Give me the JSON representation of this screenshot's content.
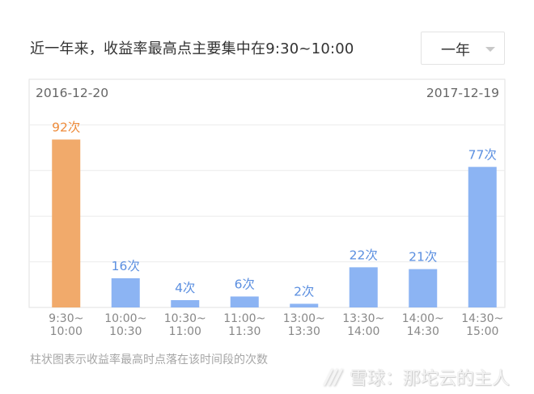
{
  "header": {
    "title": "近一年来，收益率最高点主要集中在9:30~10:00",
    "period_select": {
      "value": "一年"
    }
  },
  "chart_data": {
    "type": "bar",
    "start_date": "2016-12-20",
    "end_date": "2017-12-19",
    "categories": [
      [
        "9:30~",
        "10:00"
      ],
      [
        "10:00~",
        "10:30"
      ],
      [
        "10:30~",
        "11:00"
      ],
      [
        "11:00~",
        "11:30"
      ],
      [
        "13:00~",
        "13:30"
      ],
      [
        "13:30~",
        "14:00"
      ],
      [
        "14:00~",
        "14:30"
      ],
      [
        "14:30~",
        "15:00"
      ]
    ],
    "values": [
      92,
      16,
      4,
      6,
      2,
      22,
      21,
      77
    ],
    "value_suffix": "次",
    "ylim": [
      0,
      125
    ],
    "highlight_index": 0,
    "colors": {
      "bar": "#8cb4f3",
      "highlight": "#f1aa6b",
      "label": "#5b8fe0",
      "highlight_label": "#ee8c3c"
    },
    "grid": true
  },
  "caption": "柱状图表示收益率最高时点落在该时间段的次数",
  "watermark": {
    "text": "雪球：那坨云的主人",
    "icon": "snowball-logo-icon"
  }
}
